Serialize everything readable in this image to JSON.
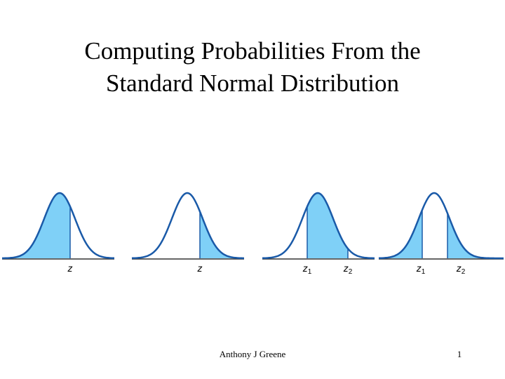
{
  "title": {
    "lines": [
      "Computing Probabilities From the",
      "Standard Normal Distribution"
    ]
  },
  "figures": [
    {
      "labels": [
        {
          "base": "z"
        }
      ]
    },
    {
      "labels": [
        {
          "base": "z"
        }
      ]
    },
    {
      "labels": [
        {
          "base": "z",
          "sub": "1"
        },
        {
          "base": "z",
          "sub": "2"
        }
      ]
    },
    {
      "labels": [
        {
          "base": "z",
          "sub": "1"
        },
        {
          "base": "z",
          "sub": "2"
        }
      ]
    }
  ],
  "footer": {
    "author": "Anthony J Greene",
    "page": "1"
  }
}
